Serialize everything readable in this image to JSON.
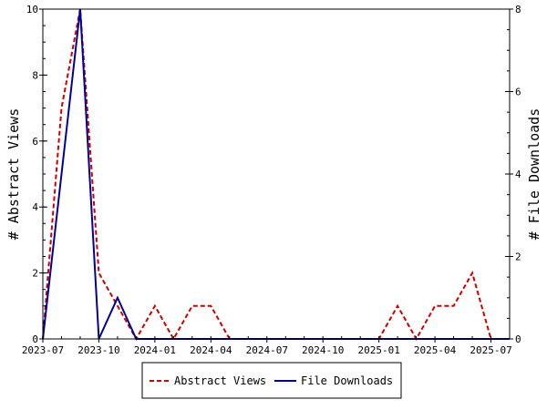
{
  "chart_data": {
    "type": "line",
    "x_ticks": [
      "2023-07",
      "2023-10",
      "2024-01",
      "2024-04",
      "2024-07",
      "2024-10",
      "2025-01",
      "2025-04",
      "2025-07"
    ],
    "x": [
      "2023-07",
      "2023-08",
      "2023-09",
      "2023-10",
      "2023-11",
      "2023-12",
      "2024-01",
      "2024-02",
      "2024-03",
      "2024-04",
      "2024-05",
      "2024-06",
      "2024-07",
      "2024-08",
      "2024-09",
      "2024-10",
      "2024-11",
      "2024-12",
      "2025-01",
      "2025-02",
      "2025-03",
      "2025-04",
      "2025-05",
      "2025-06",
      "2025-07",
      "2025-08"
    ],
    "y_left": {
      "label": "# Abstract Views",
      "lim": [
        0,
        10
      ],
      "ticks": [
        "0",
        "2",
        "4",
        "6",
        "8",
        "10"
      ]
    },
    "y_right": {
      "label": "# File Downloads",
      "lim": [
        0,
        8
      ],
      "ticks": [
        "0",
        "2",
        "4",
        "6",
        "8"
      ]
    },
    "series": [
      {
        "name": "Abstract Views",
        "axis": "left",
        "color": "#cc0000",
        "style": "dashed",
        "values": [
          0,
          7,
          10,
          2,
          1,
          0,
          1,
          0,
          1,
          1,
          0,
          0,
          0,
          0,
          0,
          0,
          0,
          0,
          0,
          1,
          0,
          1,
          1,
          2,
          0,
          0
        ]
      },
      {
        "name": "File Downloads",
        "axis": "right",
        "color": "#000099",
        "style": "solid",
        "values": [
          0,
          4,
          8,
          0,
          1,
          0,
          0,
          0,
          0,
          0,
          0,
          0,
          0,
          0,
          0,
          0,
          0,
          0,
          0,
          0,
          0,
          0,
          0,
          0,
          0,
          0
        ]
      }
    ],
    "legend": {
      "placement": "bottom-center"
    }
  }
}
